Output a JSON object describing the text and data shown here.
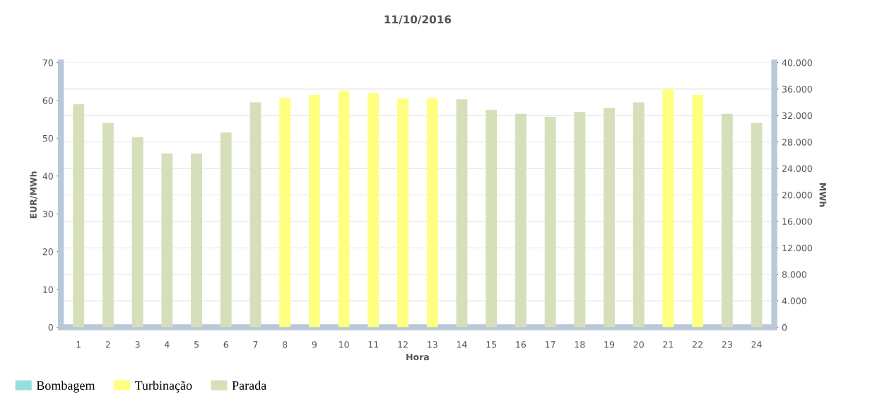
{
  "chart_data": {
    "type": "bar",
    "title": "11/10/2016",
    "xlabel": "Hora",
    "ylabel": "EUR/MWh",
    "y2label": "MWh",
    "categories": [
      "1",
      "2",
      "3",
      "4",
      "5",
      "6",
      "7",
      "8",
      "9",
      "10",
      "11",
      "12",
      "13",
      "14",
      "15",
      "16",
      "17",
      "18",
      "19",
      "20",
      "21",
      "22",
      "23",
      "24"
    ],
    "series": [
      {
        "name": "Bombagem",
        "color": "#99dede",
        "values": [
          null,
          null,
          null,
          null,
          null,
          null,
          null,
          null,
          null,
          null,
          null,
          null,
          null,
          null,
          null,
          null,
          null,
          null,
          null,
          null,
          null,
          null,
          null,
          null
        ]
      },
      {
        "name": "Turbinação",
        "color": "#ffff80",
        "values": [
          null,
          null,
          null,
          null,
          null,
          null,
          null,
          60.7,
          61.5,
          62.5,
          62,
          60.5,
          60.5,
          null,
          null,
          null,
          null,
          null,
          null,
          null,
          63,
          61.5,
          null,
          null
        ]
      },
      {
        "name": "Parada",
        "color": "#d5e0ba",
        "values": [
          59,
          54,
          50.3,
          46,
          46,
          51.5,
          59.5,
          null,
          null,
          null,
          null,
          null,
          null,
          60.3,
          57.5,
          56.5,
          55.7,
          57,
          58,
          59.5,
          null,
          null,
          56.5,
          54
        ]
      }
    ],
    "ylim": [
      0,
      70
    ],
    "yticks": [
      0,
      10,
      20,
      30,
      40,
      50,
      60,
      70
    ],
    "y2lim": [
      0,
      40000
    ],
    "y2ticks": [
      {
        "value": 0,
        "label": "0"
      },
      {
        "value": 4000,
        "label": "4.000"
      },
      {
        "value": 8000,
        "label": "8.000"
      },
      {
        "value": 12000,
        "label": "12.000"
      },
      {
        "value": 16000,
        "label": "16.000"
      },
      {
        "value": 20000,
        "label": "20.000"
      },
      {
        "value": 24000,
        "label": "24.000"
      },
      {
        "value": 28000,
        "label": "28.000"
      },
      {
        "value": 32000,
        "label": "32.000"
      },
      {
        "value": 36000,
        "label": "36.000"
      },
      {
        "value": 40000,
        "label": "40.000"
      }
    ],
    "grid": "y",
    "legend": "bottom left"
  }
}
